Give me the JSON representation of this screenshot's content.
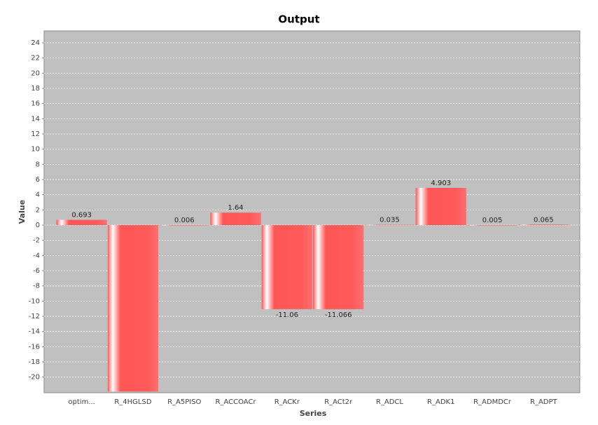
{
  "chart_data": {
    "type": "bar",
    "title": "Output",
    "x_label": "Series",
    "y_label": "Value",
    "categories": [
      "optim...",
      "R_4HGLSD",
      "R_A5PISO",
      "R_ACCOACr",
      "R_ACKr",
      "R_ACt2r",
      "R_ADCL",
      "R_ADK1",
      "R_ADMDCr",
      "R_ADPT"
    ],
    "values": [
      0.693,
      -21.9,
      0.006,
      1.64,
      -11.06,
      -11.066,
      0.035,
      4.903,
      0.005,
      0.065
    ],
    "value_labels": [
      "0.693",
      null,
      "0.006",
      "1.64",
      "-11.06",
      "-11.066",
      "0.035",
      "4.903",
      "0.005",
      "0.065"
    ],
    "color": "#ff5555",
    "ylim": [
      -22.06,
      25.57
    ],
    "yticks": [
      -20,
      -18,
      -16,
      -14,
      -12,
      -10,
      -8,
      -6,
      -4,
      -2,
      0,
      2,
      4,
      6,
      8,
      10,
      12,
      14,
      16,
      18,
      20,
      22,
      24
    ],
    "grid": true
  }
}
